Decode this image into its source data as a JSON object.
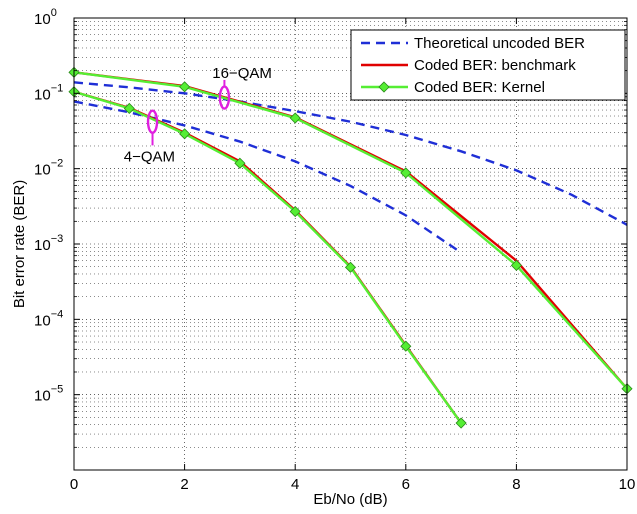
{
  "chart_data": {
    "type": "line",
    "xlabel": "Eb/No (dB)",
    "ylabel": "Bit error rate (BER)",
    "xlim": [
      0,
      10
    ],
    "ylim": [
      1e-06,
      1
    ],
    "yscale": "log",
    "grid": true,
    "legend_position": "top-right",
    "x_ticks": [
      0,
      2,
      4,
      6,
      8,
      10
    ],
    "y_ticks": [
      {
        "exp": -5,
        "label_base": "10",
        "label_exp": "−5"
      },
      {
        "exp": -4,
        "label_base": "10",
        "label_exp": "−4"
      },
      {
        "exp": -3,
        "label_base": "10",
        "label_exp": "−3"
      },
      {
        "exp": -2,
        "label_base": "10",
        "label_exp": "−2"
      },
      {
        "exp": -1,
        "label_base": "10",
        "label_exp": "−1"
      },
      {
        "exp": 0,
        "label_base": "10",
        "label_exp": "0"
      }
    ],
    "legend": [
      {
        "label": "Theoretical uncoded BER",
        "color": "#1f2fd6",
        "style": "dashed",
        "marker": "none"
      },
      {
        "label": "Coded BER: benchmark",
        "color": "#e00000",
        "style": "solid",
        "marker": "none"
      },
      {
        "label": "Coded BER: Kernel",
        "color": "#55ee33",
        "style": "solid",
        "marker": "diamond"
      }
    ],
    "series": [
      {
        "legend_index": 0,
        "color": "#1f2fd6",
        "style": "dashed",
        "points": [
          [
            0,
            0.078
          ],
          [
            1,
            0.056
          ],
          [
            2,
            0.0375
          ],
          [
            3,
            0.0229
          ],
          [
            4,
            0.0125
          ],
          [
            5,
            0.0059
          ],
          [
            6,
            0.0024
          ],
          [
            7,
            0.00077
          ]
        ]
      },
      {
        "legend_index": 0,
        "color": "#1f2fd6",
        "style": "dashed",
        "points": [
          [
            0,
            0.14
          ],
          [
            1,
            0.12
          ],
          [
            2,
            0.1
          ],
          [
            3,
            0.078
          ],
          [
            4,
            0.058
          ],
          [
            5,
            0.042
          ],
          [
            6,
            0.028
          ],
          [
            7,
            0.017
          ],
          [
            8,
            0.0095
          ],
          [
            9,
            0.0045
          ],
          [
            10,
            0.0018
          ]
        ]
      },
      {
        "legend_index": 1,
        "color": "#e00000",
        "style": "solid",
        "points": [
          [
            0,
            0.105
          ],
          [
            1,
            0.064
          ],
          [
            2,
            0.03
          ],
          [
            3,
            0.0125
          ],
          [
            4,
            0.0028
          ],
          [
            5,
            0.0005
          ],
          [
            6,
            4.5e-05
          ],
          [
            7,
            4.2e-06
          ]
        ]
      },
      {
        "legend_index": 1,
        "color": "#e00000",
        "style": "solid",
        "points": [
          [
            0,
            0.19
          ],
          [
            2,
            0.125
          ],
          [
            4,
            0.048
          ],
          [
            6,
            0.0092
          ],
          [
            8,
            0.0006
          ],
          [
            10,
            1.2e-05
          ]
        ]
      },
      {
        "legend_index": 2,
        "color": "#55ee33",
        "style": "solid",
        "marker": "diamond",
        "points": [
          [
            0,
            0.105
          ],
          [
            1,
            0.063
          ],
          [
            2,
            0.029
          ],
          [
            3,
            0.0118
          ],
          [
            4,
            0.0027
          ],
          [
            5,
            0.00049
          ],
          [
            6,
            4.4e-05
          ],
          [
            7,
            4.2e-06
          ]
        ]
      },
      {
        "legend_index": 2,
        "color": "#55ee33",
        "style": "solid",
        "marker": "diamond",
        "points": [
          [
            0,
            0.19
          ],
          [
            2,
            0.122
          ],
          [
            4,
            0.047
          ],
          [
            6,
            0.0088
          ],
          [
            8,
            0.00052
          ],
          [
            10,
            1.2e-05
          ]
        ]
      }
    ],
    "annotations": [
      {
        "text": "16−QAM",
        "text_x": 2.5,
        "text_y": 0.16,
        "ellipse_x": 2.72,
        "ellipse_y": 0.088,
        "color": "#e020e0"
      },
      {
        "text": "4−QAM",
        "text_x": 0.9,
        "text_y": 0.0125,
        "ellipse_x": 1.42,
        "ellipse_y": 0.042,
        "color": "#e020e0"
      }
    ]
  }
}
